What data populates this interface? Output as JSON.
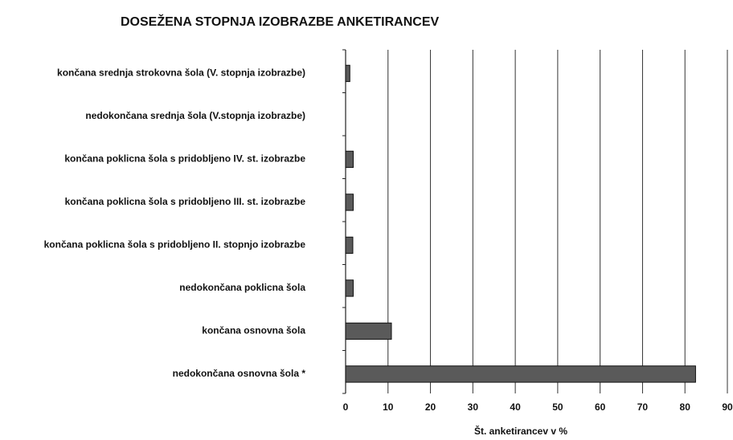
{
  "chart_data": {
    "type": "bar",
    "orientation": "horizontal",
    "title": "DOSEŽENA STOPNJA IZOBRAZBE ANKETIRANCEV",
    "x_label": "Št. anketirancev v %",
    "categories": [
      "končana srednja strokovna šola (V. stopnja izobrazbe)",
      "nedokončana srednja šola (V.stopnja izobrazbe)",
      "končana poklicna šola s pridobljeno IV. st. izobrazbe",
      "končana poklicna šola s pridobljeno III. st. izobrazbe",
      "končana poklicna šola s pridobljeno II. stopnjo izobrazbe",
      "nedokončana poklicna šola",
      "končana osnovna šola",
      "nedokončana osnovna šola *"
    ],
    "values": [
      1,
      0,
      1.8,
      1.8,
      1.7,
      1.8,
      10.8,
      82.5
    ],
    "color": "#5a5a5a",
    "xlim": [
      0,
      90
    ],
    "xticks": [
      0,
      10,
      20,
      30,
      40,
      50,
      60,
      70,
      80,
      90
    ],
    "grid": true
  }
}
